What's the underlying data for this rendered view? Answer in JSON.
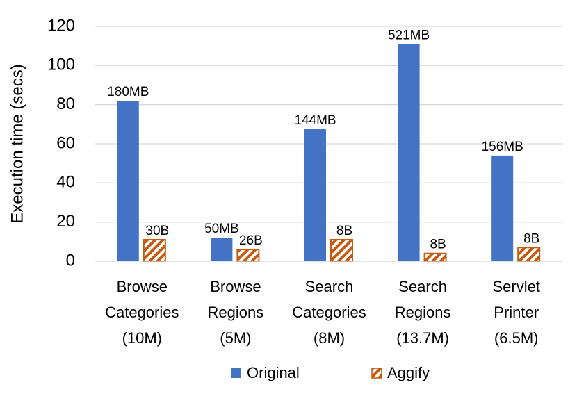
{
  "chart_data": {
    "type": "bar",
    "y_label": "Execution time (secs)",
    "categories": [
      [
        "Browse",
        "Categories",
        "(10M)"
      ],
      [
        "Browse",
        "Regions",
        "(5M)"
      ],
      [
        "Search",
        "Categories",
        "(8M)"
      ],
      [
        "Search",
        "Regions",
        "(13.7M)"
      ],
      [
        "Servlet",
        "Printer",
        "(6.5M)"
      ]
    ],
    "series": [
      {
        "name": "Original",
        "color": "#4472c4",
        "pattern": "solid",
        "values": [
          82,
          12,
          67.5,
          111,
          54
        ],
        "bar_labels": [
          "180MB",
          "50MB",
          "144MB",
          "521MB",
          "156MB"
        ]
      },
      {
        "name": "Aggify",
        "color": "#c55a11",
        "pattern": "hatch",
        "values": [
          11,
          6,
          11,
          4,
          7
        ],
        "bar_labels": [
          "30B",
          "26B",
          "8B",
          "8B",
          "8B"
        ]
      }
    ],
    "ylim": [
      0,
      120
    ],
    "yticks": [
      0,
      20,
      40,
      60,
      80,
      100,
      120
    ],
    "grid": true,
    "legend": "bottom"
  }
}
